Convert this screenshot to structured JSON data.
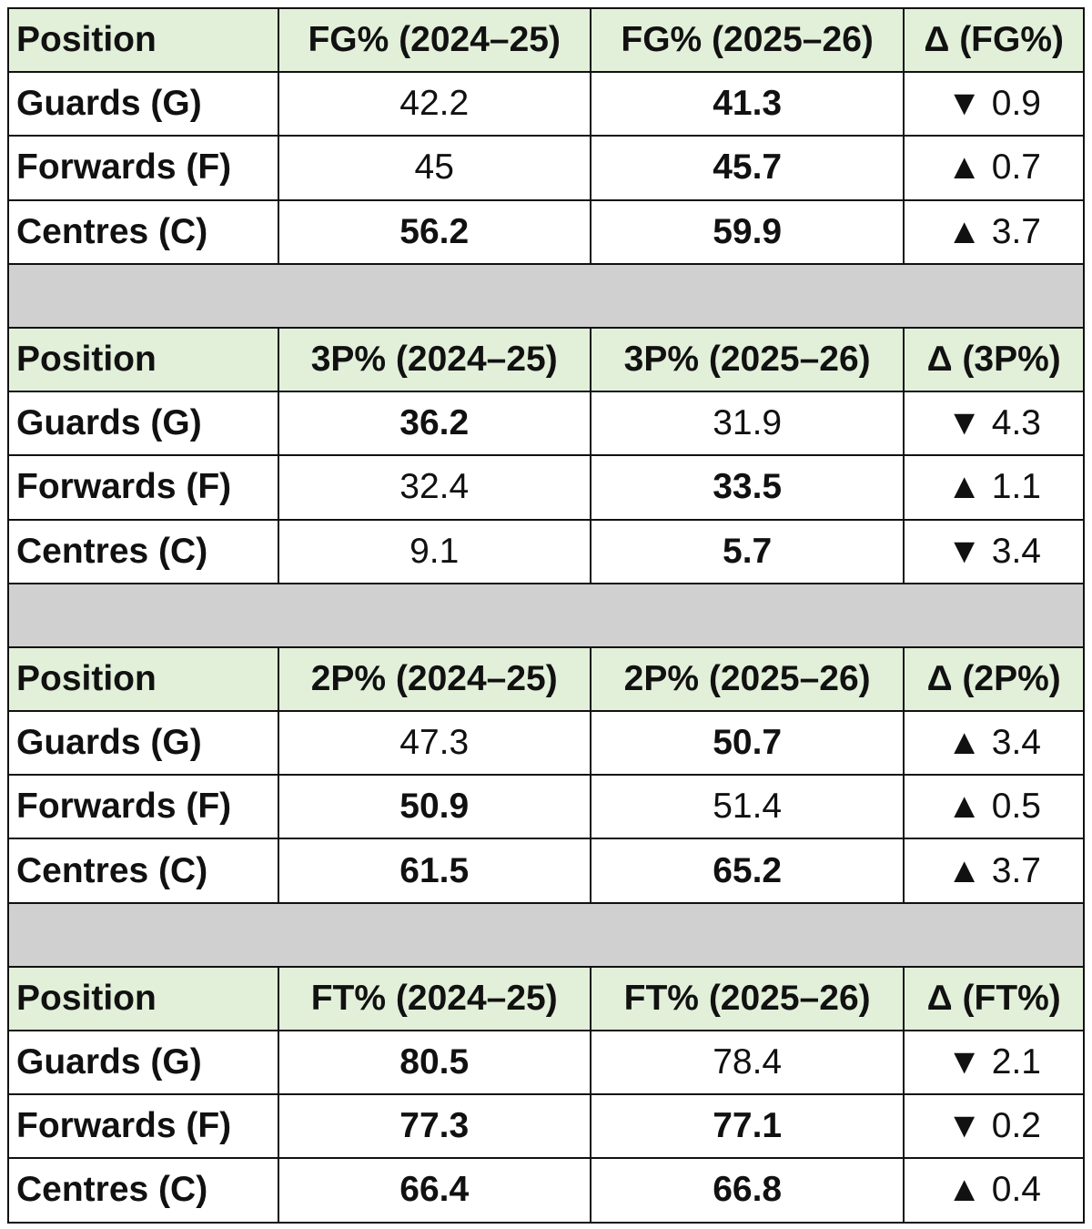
{
  "tables": [
    {
      "header": [
        "Position",
        "FG% (2024–25)",
        "FG% (2025–26)",
        "Δ (FG%)"
      ],
      "rows": [
        [
          "Guards (G)",
          42.2,
          41.3,
          "▼ 0.9"
        ],
        [
          "Forwards (F)",
          45,
          45.7,
          "▲ 0.7"
        ],
        [
          "Centres (C)",
          56.2,
          59.9,
          "▲ 3.7"
        ]
      ],
      "bold": [
        [
          false,
          true
        ],
        [
          false,
          true
        ],
        [
          true,
          true
        ]
      ]
    },
    {
      "header": [
        "Position",
        "3P% (2024–25)",
        "3P% (2025–26)",
        "Δ (3P%)"
      ],
      "rows": [
        [
          "Guards (G)",
          36.2,
          31.9,
          "▼ 4.3"
        ],
        [
          "Forwards (F)",
          32.4,
          33.5,
          "▲ 1.1"
        ],
        [
          "Centres (C)",
          9.1,
          5.7,
          "▼ 3.4"
        ]
      ],
      "bold": [
        [
          true,
          false
        ],
        [
          false,
          true
        ],
        [
          false,
          true
        ]
      ]
    },
    {
      "header": [
        "Position",
        "2P% (2024–25)",
        "2P% (2025–26)",
        "Δ (2P%)"
      ],
      "rows": [
        [
          "Guards (G)",
          47.3,
          50.7,
          "▲ 3.4"
        ],
        [
          "Forwards (F)",
          50.9,
          51.4,
          "▲ 0.5"
        ],
        [
          "Centres (C)",
          61.5,
          65.2,
          "▲ 3.7"
        ]
      ],
      "bold": [
        [
          false,
          true
        ],
        [
          true,
          false
        ],
        [
          true,
          true
        ]
      ]
    },
    {
      "header": [
        "Position",
        "FT% (2024–25)",
        "FT% (2025–26)",
        "Δ (FT%)"
      ],
      "rows": [
        [
          "Guards (G)",
          80.5,
          78.4,
          "▼ 2.1"
        ],
        [
          "Forwards (F)",
          77.3,
          77.1,
          "▼ 0.2"
        ],
        [
          "Centres (C)",
          66.4,
          66.8,
          "▲ 0.4"
        ]
      ],
      "bold": [
        [
          true,
          false
        ],
        [
          true,
          true
        ],
        [
          true,
          true
        ]
      ]
    }
  ]
}
